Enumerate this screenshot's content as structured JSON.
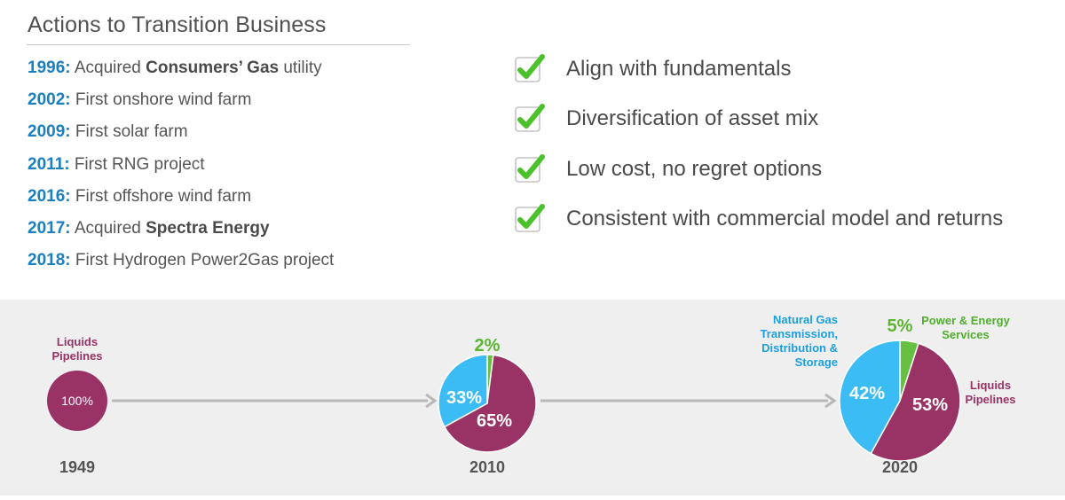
{
  "header": {
    "title": "Actions to Transition Business"
  },
  "milestones": [
    {
      "year": "1996:",
      "pre": "Acquired ",
      "bold": "Consumers’ Gas",
      "post": " utility"
    },
    {
      "year": "2002:",
      "pre": "First onshore wind farm",
      "bold": "",
      "post": ""
    },
    {
      "year": "2009:",
      "pre": "First solar farm",
      "bold": "",
      "post": ""
    },
    {
      "year": "2011:",
      "pre": "First RNG project",
      "bold": "",
      "post": ""
    },
    {
      "year": "2016:",
      "pre": "First offshore wind farm",
      "bold": "",
      "post": ""
    },
    {
      "year": "2017:",
      "pre": "Acquired ",
      "bold": "Spectra Energy",
      "post": ""
    },
    {
      "year": "2018:",
      "pre": "First Hydrogen Power2Gas project",
      "bold": "",
      "post": ""
    }
  ],
  "principles": [
    {
      "label": "Align with fundamentals",
      "icon": "check-icon"
    },
    {
      "label": "Diversification of asset mix",
      "icon": "check-icon"
    },
    {
      "label": "Low cost, no regret options",
      "icon": "check-icon"
    },
    {
      "label": "Consistent with commercial model and returns",
      "icon": "check-icon"
    }
  ],
  "colors": {
    "liquids": "#993366",
    "gas": "#3cbcf5",
    "power": "#66c142",
    "year_blue": "#1b7fc0",
    "check_green": "#4bc22c",
    "arrow": "#b8b8b8"
  },
  "chart_data": {
    "type": "pie",
    "pies": [
      {
        "year": "1949",
        "slices": [
          {
            "name": "Liquids Pipelines",
            "value": 100,
            "label": "100%"
          }
        ],
        "series_labels": [
          {
            "text": "Liquids\nPipelines"
          }
        ]
      },
      {
        "year": "2010",
        "slices": [
          {
            "name": "Liquids Pipelines",
            "value": 65,
            "label": "65%"
          },
          {
            "name": "Natural Gas Transmission, Distribution & Storage",
            "value": 33,
            "label": "33%"
          },
          {
            "name": "Power & Energy Services",
            "value": 2,
            "label": "2%"
          }
        ],
        "series_labels": []
      },
      {
        "year": "2020",
        "slices": [
          {
            "name": "Liquids Pipelines",
            "value": 53,
            "label": "53%"
          },
          {
            "name": "Natural Gas Transmission, Distribution & Storage",
            "value": 42,
            "label": "42%"
          },
          {
            "name": "Power & Energy Services",
            "value": 5,
            "label": "5%"
          }
        ],
        "series_labels": [
          {
            "text": "Natural Gas\nTransmission,\nDistribution &\nStorage"
          },
          {
            "text": "Power & Energy\nServices"
          },
          {
            "text": "Liquids\nPipelines"
          }
        ]
      }
    ]
  }
}
